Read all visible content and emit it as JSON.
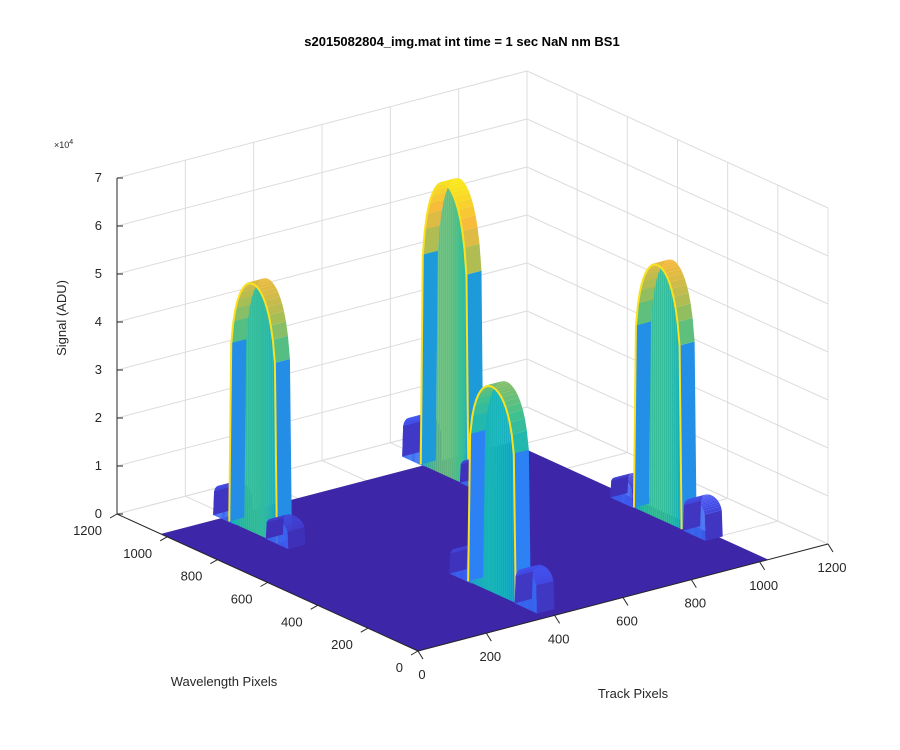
{
  "chart_data": {
    "type": "surface",
    "title": "s2015082804_img.mat int time = 1 sec  NaN nm BS1",
    "xlabel": "Track Pixels",
    "ylabel": "Wavelength Pixels",
    "zlabel": "Signal (ADU)",
    "z_multiplier_text": "×10",
    "z_multiplier_exp": "4",
    "xlim": [
      0,
      1200
    ],
    "ylim": [
      0,
      1200
    ],
    "zlim": [
      0,
      70000
    ],
    "x_ticks": [
      0,
      200,
      400,
      600,
      800,
      1000,
      1200
    ],
    "y_ticks": [
      0,
      200,
      400,
      600,
      800,
      1000,
      1200
    ],
    "z_ticks": [
      0,
      1,
      2,
      3,
      4,
      5,
      6,
      7
    ],
    "data_extent": {
      "x": [
        0,
        1024
      ],
      "y": [
        0,
        1024
      ]
    },
    "baseline_value": 0,
    "colormap": [
      "#3e26a8",
      "#4352f0",
      "#2c81f5",
      "#1b9ed6",
      "#17b4bb",
      "#40c08f",
      "#a7bd55",
      "#f7ba3c",
      "#f9e81c"
    ],
    "peaks": [
      {
        "x": 200,
        "y": 900,
        "peak": 52000,
        "side_lobes": [
          {
            "x": 200,
            "y": 1010,
            "peak": 7000
          },
          {
            "x": 200,
            "y": 800,
            "peak": 5000
          }
        ]
      },
      {
        "x": 400,
        "y": 220,
        "peak": 43000,
        "side_lobes": [
          {
            "x": 400,
            "y": 80,
            "peak": 8000
          },
          {
            "x": 400,
            "y": 340,
            "peak": 6000
          }
        ]
      },
      {
        "x": 790,
        "y": 940,
        "peak": 61000,
        "side_lobes": [
          {
            "x": 790,
            "y": 1060,
            "peak": 9000
          },
          {
            "x": 790,
            "y": 830,
            "peak": 5500
          }
        ]
      },
      {
        "x": 1010,
        "y": 390,
        "peak": 53000,
        "side_lobes": [
          {
            "x": 1010,
            "y": 240,
            "peak": 7500
          },
          {
            "x": 1010,
            "y": 530,
            "peak": 5000
          }
        ]
      }
    ]
  }
}
